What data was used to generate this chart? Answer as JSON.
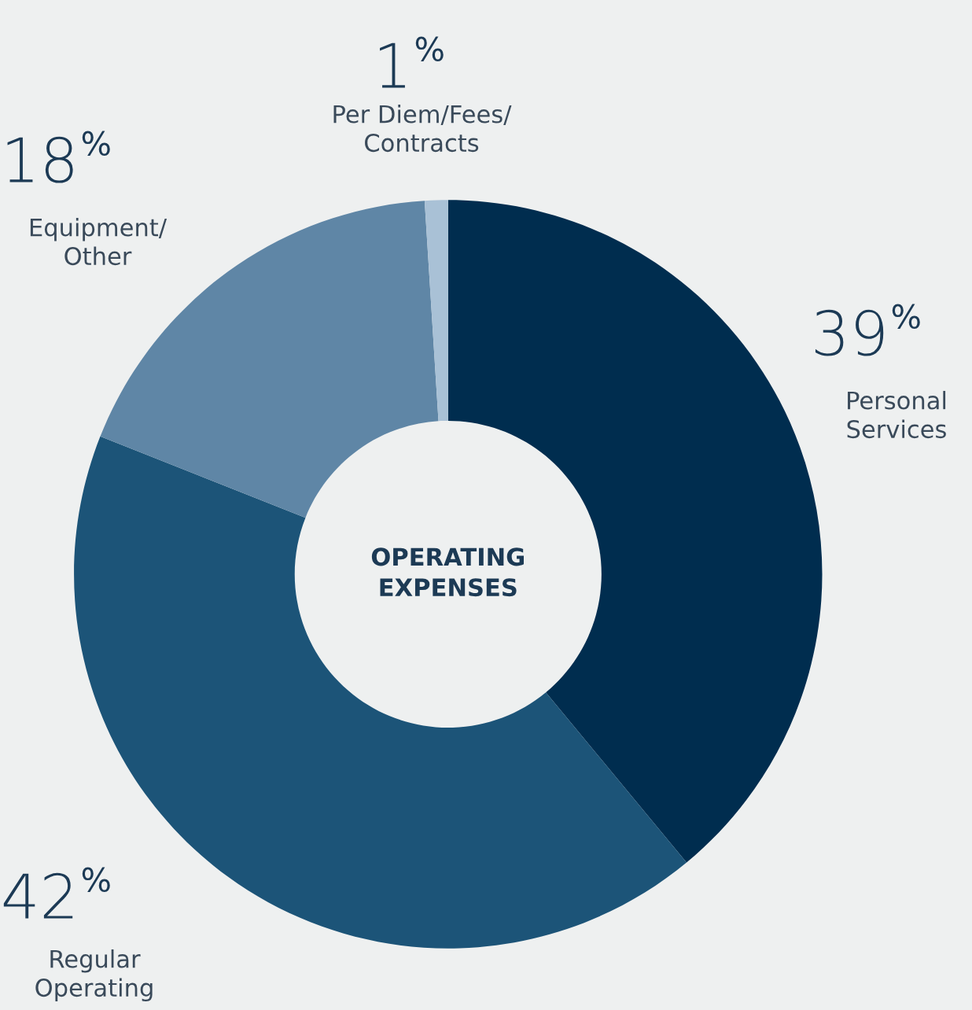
{
  "chart_data": {
    "type": "donut",
    "title": "OPERATING\nEXPENSES",
    "categories": [
      "Personal\nServices",
      "Regular\nOperating",
      "Equipment/\nOther",
      "Per Diem/Fees/\nContracts"
    ],
    "values": [
      39,
      42,
      18,
      1
    ],
    "value_labels": [
      "39%",
      "42%",
      "18%",
      "1%"
    ],
    "colors": [
      "#002d4f",
      "#1c5478",
      "#5f86a6",
      "#a9c1d6"
    ],
    "legend": false
  }
}
